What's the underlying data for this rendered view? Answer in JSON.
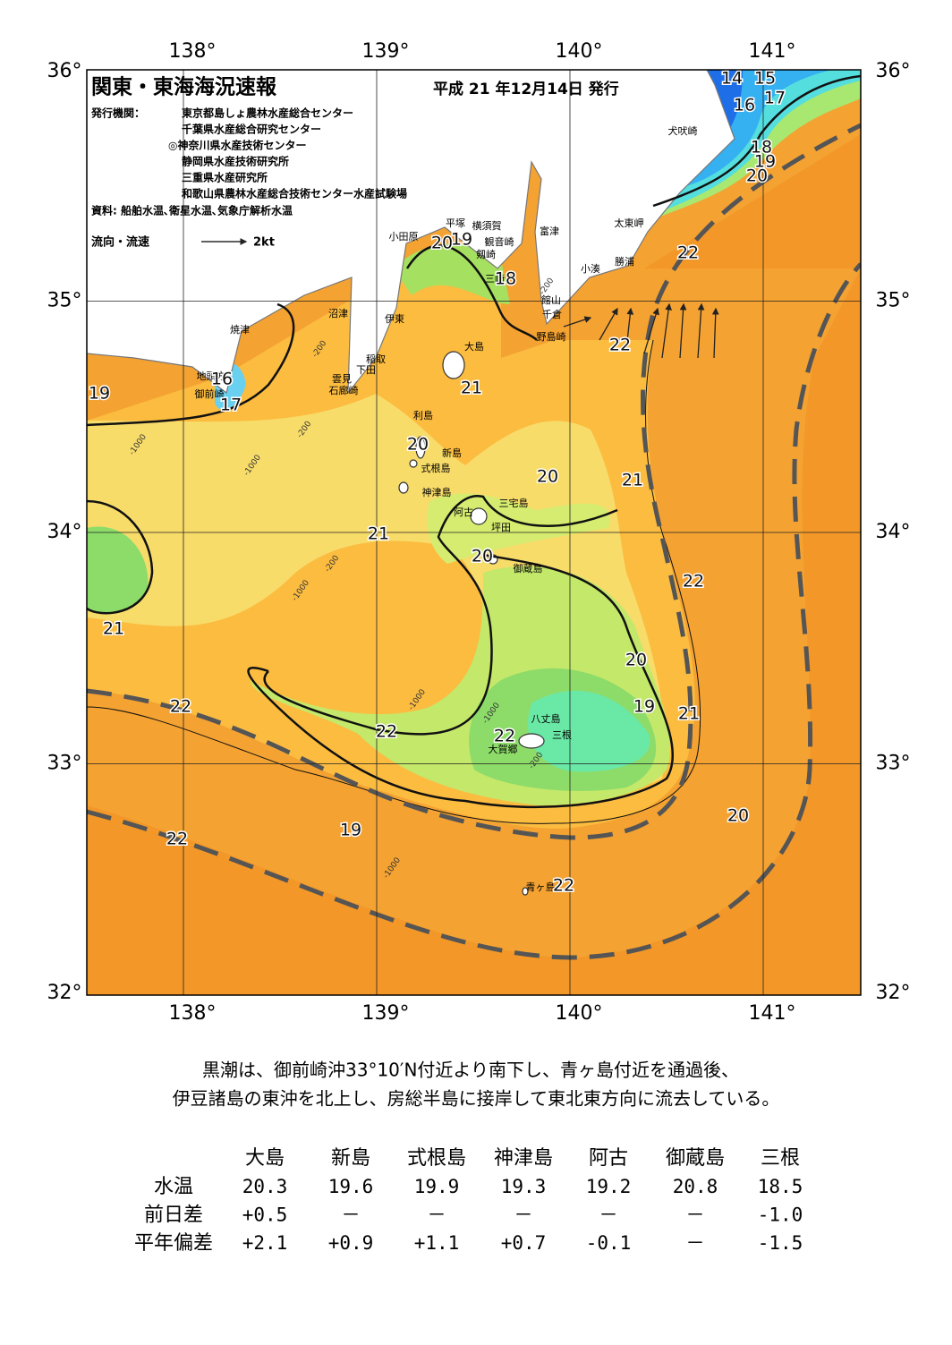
{
  "header": {
    "title": "関東・東海海況速報",
    "date": "平成 21 年12月14日 発行",
    "issuer_label": "発行機関：",
    "issuers": [
      "東京都島しょ農林水産総合センター",
      "千葉県水産総合研究センター",
      "◎神奈川県水産技術センター",
      "静岡県水産技術研究所",
      "三重県水産研究所",
      "和歌山県農林水産総合技術センター水産試験場"
    ],
    "source": "資料: 船舶水温､衛星水温､気象庁解析水温",
    "legend": {
      "label": "流向・流速",
      "scale": "2kt"
    }
  },
  "map": {
    "xticks": [
      {
        "value": 138,
        "label": "138°"
      },
      {
        "value": 139,
        "label": "139°"
      },
      {
        "value": 140,
        "label": "140°"
      },
      {
        "value": 141,
        "label": "141°"
      }
    ],
    "yticks": [
      {
        "value": 32,
        "label": "32°"
      },
      {
        "value": 33,
        "label": "33°"
      },
      {
        "value": 34,
        "label": "34°"
      },
      {
        "value": 35,
        "label": "35°"
      },
      {
        "value": 36,
        "label": "36°"
      }
    ],
    "place_names": [
      "大島",
      "新島",
      "式根島",
      "神津島",
      "阿古",
      "三宅島",
      "坪田",
      "御蔵島",
      "八丈島",
      "三根",
      "大賀郷",
      "青ヶ島",
      "利島",
      "小田原",
      "平塚",
      "横須賀",
      "観音崎",
      "富津",
      "剱崎",
      "三崎",
      "館山",
      "千倉",
      "野島崎",
      "小湊",
      "勝浦",
      "太東岬",
      "犬吠崎",
      "沼津",
      "伊東",
      "稲取",
      "下田",
      "雲見",
      "石廊崎",
      "焼津",
      "地頭方",
      "御前崎"
    ],
    "contour_labels": [
      14,
      15,
      16,
      17,
      18,
      19,
      20,
      22,
      22,
      21,
      19,
      16,
      17,
      20,
      20,
      21,
      21,
      20,
      22,
      21,
      20,
      19,
      21,
      22,
      20,
      19,
      22,
      22,
      22,
      22,
      20,
      19,
      18
    ],
    "depth_labels": [
      -200,
      -1000,
      -200,
      -1000,
      -200,
      -1000,
      -1000,
      -200,
      -1000,
      -1000,
      -200
    ]
  },
  "summary": [
    "黒潮は、御前崎沖33°10′N付近より南下し、青ヶ島付近を通過後、",
    "伊豆諸島の東沖を北上し、房総半島に接岸して東北東方向に流去している。"
  ],
  "table": {
    "columns": [
      "大島",
      "新島",
      "式根島",
      "神津島",
      "阿古",
      "御蔵島",
      "三根"
    ],
    "rows": [
      {
        "label": "水温",
        "cells": [
          "20.3",
          "19.6",
          "19.9",
          "19.3",
          "19.2",
          "20.8",
          "18.5"
        ]
      },
      {
        "label": "前日差",
        "cells": [
          "+0.5",
          "－",
          "－",
          "－",
          "－",
          "－",
          "-1.0"
        ]
      },
      {
        "label": "平年偏差",
        "cells": [
          "+2.1",
          "+0.9",
          "+1.1",
          "+0.7",
          "-0.1",
          "－",
          "-1.5"
        ]
      }
    ]
  }
}
